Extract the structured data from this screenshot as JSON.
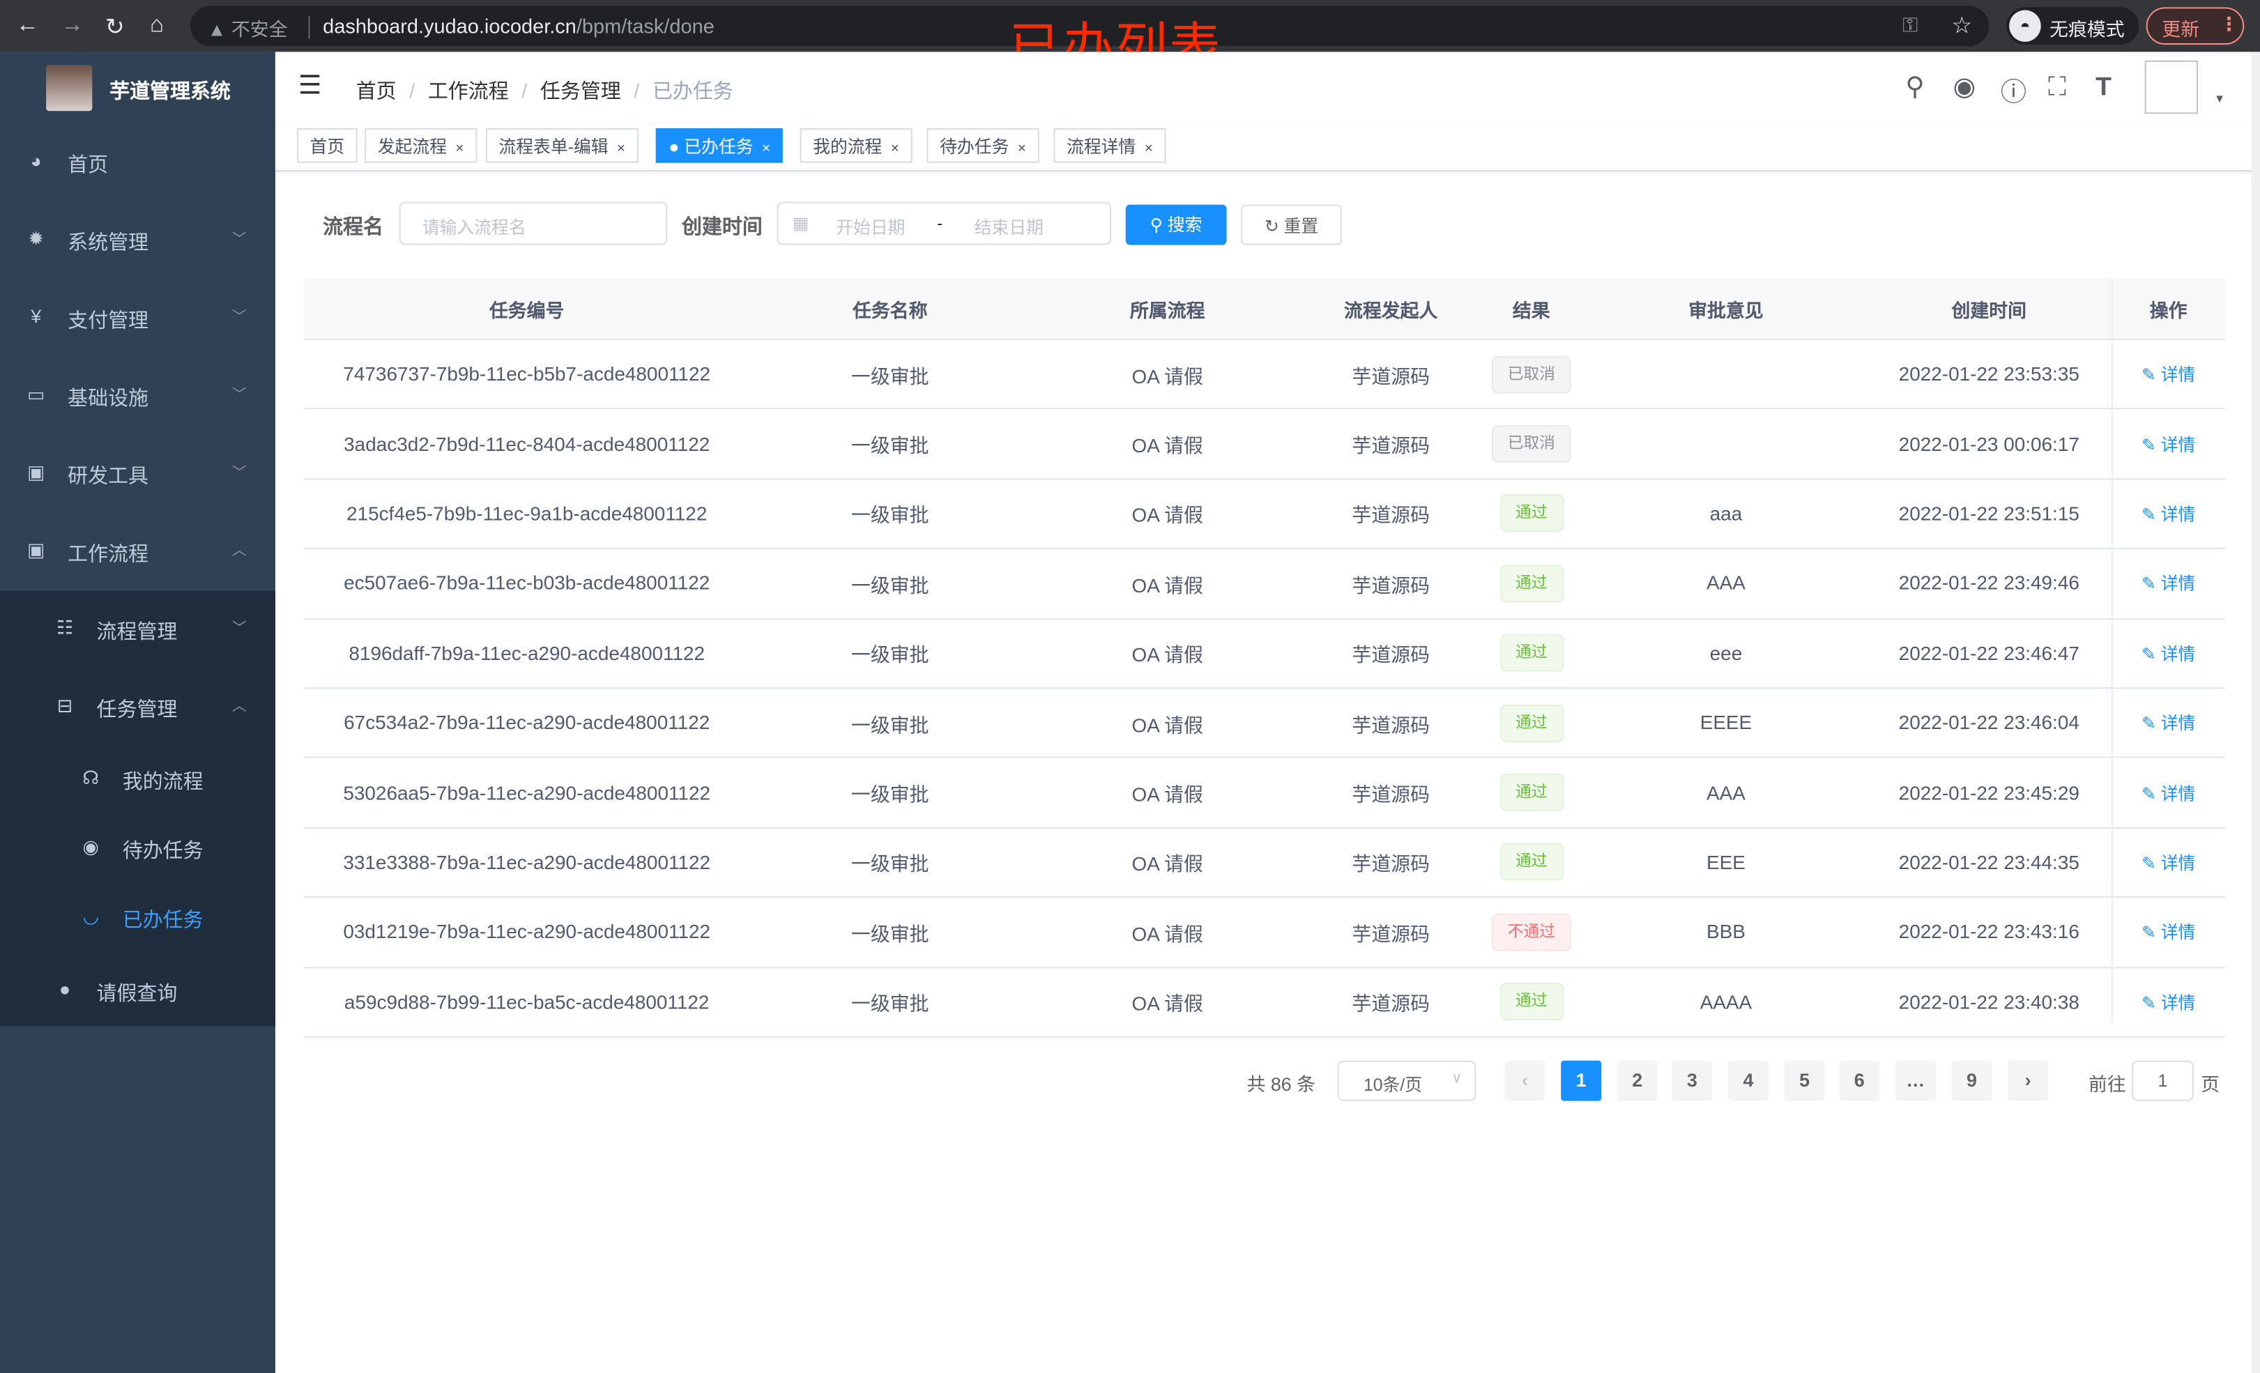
{
  "browser": {
    "insecure_label": "不安全",
    "url_host": "dashboard.yudao.iocoder.cn",
    "url_path": "/bpm/task/done",
    "incognito_label": "无痕模式",
    "update_label": "更新"
  },
  "overlay_title": "已办列表",
  "sidebar": {
    "logo_title": "芋道管理系统",
    "items": [
      {
        "label": "首页",
        "icon": "dashboard-icon"
      },
      {
        "label": "系统管理",
        "icon": "gear-icon"
      },
      {
        "label": "支付管理",
        "icon": "yen-icon"
      },
      {
        "label": "基础设施",
        "icon": "monitor-icon"
      },
      {
        "label": "研发工具",
        "icon": "toolbox-icon"
      },
      {
        "label": "工作流程",
        "icon": "toolbox-icon",
        "expanded": true
      },
      {
        "label": "流程管理",
        "icon": "list-icon"
      },
      {
        "label": "任务管理",
        "icon": "tree-icon",
        "expanded": true
      },
      {
        "label": "我的流程",
        "icon": "people-icon"
      },
      {
        "label": "待办任务",
        "icon": "eye-icon"
      },
      {
        "label": "已办任务",
        "icon": "eye-closed-icon",
        "active": true
      },
      {
        "label": "请假查询",
        "icon": "user-icon"
      }
    ]
  },
  "breadcrumb": [
    "首页",
    "工作流程",
    "任务管理",
    "已办任务"
  ],
  "tags": [
    {
      "label": "首页"
    },
    {
      "label": "发起流程"
    },
    {
      "label": "流程表单-编辑"
    },
    {
      "label": "已办任务",
      "active": true
    },
    {
      "label": "我的流程"
    },
    {
      "label": "待办任务"
    },
    {
      "label": "流程详情"
    }
  ],
  "search": {
    "name_label": "流程名",
    "name_placeholder": "请输入流程名",
    "time_label": "创建时间",
    "start_placeholder": "开始日期",
    "range_sep": "-",
    "end_placeholder": "结束日期",
    "search_button": "搜索",
    "reset_button": "重置"
  },
  "table": {
    "headers": [
      "任务编号",
      "任务名称",
      "所属流程",
      "流程发起人",
      "结果",
      "审批意见",
      "创建时间",
      "操作"
    ],
    "action_label": "详情",
    "rows": [
      {
        "id": "74736737-7b9b-11ec-b5b7-acde48001122",
        "name": "一级审批",
        "process": "OA 请假",
        "starter": "芋道源码",
        "result": "已取消",
        "status": "cancel",
        "comment": "",
        "time": "2022-01-22 23:53:35"
      },
      {
        "id": "3adac3d2-7b9d-11ec-8404-acde48001122",
        "name": "一级审批",
        "process": "OA 请假",
        "starter": "芋道源码",
        "result": "已取消",
        "status": "cancel",
        "comment": "",
        "time": "2022-01-23 00:06:17"
      },
      {
        "id": "215cf4e5-7b9b-11ec-9a1b-acde48001122",
        "name": "一级审批",
        "process": "OA 请假",
        "starter": "芋道源码",
        "result": "通过",
        "status": "pass",
        "comment": "aaa",
        "time": "2022-01-22 23:51:15"
      },
      {
        "id": "ec507ae6-7b9a-11ec-b03b-acde48001122",
        "name": "一级审批",
        "process": "OA 请假",
        "starter": "芋道源码",
        "result": "通过",
        "status": "pass",
        "comment": "AAA",
        "time": "2022-01-22 23:49:46"
      },
      {
        "id": "8196daff-7b9a-11ec-a290-acde48001122",
        "name": "一级审批",
        "process": "OA 请假",
        "starter": "芋道源码",
        "result": "通过",
        "status": "pass",
        "comment": "eee",
        "time": "2022-01-22 23:46:47"
      },
      {
        "id": "67c534a2-7b9a-11ec-a290-acde48001122",
        "name": "一级审批",
        "process": "OA 请假",
        "starter": "芋道源码",
        "result": "通过",
        "status": "pass",
        "comment": "EEEE",
        "time": "2022-01-22 23:46:04"
      },
      {
        "id": "53026aa5-7b9a-11ec-a290-acde48001122",
        "name": "一级审批",
        "process": "OA 请假",
        "starter": "芋道源码",
        "result": "通过",
        "status": "pass",
        "comment": "AAA",
        "time": "2022-01-22 23:45:29"
      },
      {
        "id": "331e3388-7b9a-11ec-a290-acde48001122",
        "name": "一级审批",
        "process": "OA 请假",
        "starter": "芋道源码",
        "result": "通过",
        "status": "pass",
        "comment": "EEE",
        "time": "2022-01-22 23:44:35"
      },
      {
        "id": "03d1219e-7b9a-11ec-a290-acde48001122",
        "name": "一级审批",
        "process": "OA 请假",
        "starter": "芋道源码",
        "result": "不通过",
        "status": "reject",
        "comment": "BBB",
        "time": "2022-01-22 23:43:16"
      },
      {
        "id": "a59c9d88-7b99-11ec-ba5c-acde48001122",
        "name": "一级审批",
        "process": "OA 请假",
        "starter": "芋道源码",
        "result": "通过",
        "status": "pass",
        "comment": "AAAA",
        "time": "2022-01-22 23:40:38"
      }
    ]
  },
  "status_colors": {
    "cancel": {
      "bg": "#f4f4f5",
      "border": "#e9e9eb",
      "text": "#909399"
    },
    "pass": {
      "bg": "#f0f9eb",
      "border": "#e1f3d8",
      "text": "#67c23a"
    },
    "reject": {
      "bg": "#fef0f0",
      "border": "#fde2e2",
      "text": "#f56c6c"
    }
  },
  "pagination": {
    "total": "共 86 条",
    "page_size": "10条/页",
    "pages": [
      "1",
      "2",
      "3",
      "4",
      "5",
      "6",
      "…",
      "9"
    ],
    "current": "1",
    "goto_label": "前往",
    "goto_value": "1",
    "page_suffix": "页"
  },
  "accent": "#1890ff"
}
